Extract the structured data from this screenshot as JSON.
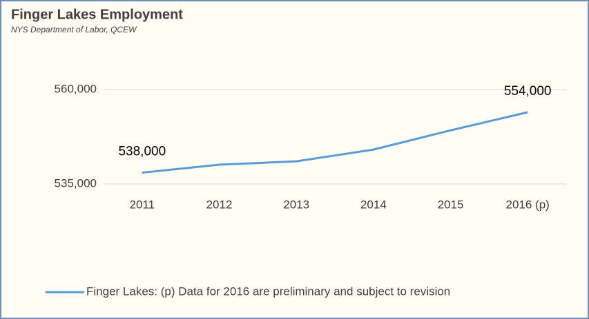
{
  "chart_data": {
    "type": "line",
    "title": "Finger Lakes Employment",
    "subtitle": "NYS Department of Labor, QCEW",
    "categories": [
      "2011",
      "2012",
      "2013",
      "2014",
      "2015",
      "2016 (p)"
    ],
    "series": [
      {
        "name": "Finger Lakes: (p) Data for 2016 are preliminary and subject to revision",
        "color": "#5b9bd5",
        "values": [
          538000,
          540100,
          541000,
          544100,
          549200,
          554000
        ],
        "value_labels": [
          "538,000",
          null,
          null,
          null,
          null,
          "554,000"
        ]
      }
    ],
    "ylim": [
      535000,
      560000
    ],
    "yticks": [
      {
        "value": 535000,
        "label": "535,000"
      },
      {
        "value": 560000,
        "label": "560,000"
      }
    ],
    "grid": true,
    "legend": "bottom"
  }
}
